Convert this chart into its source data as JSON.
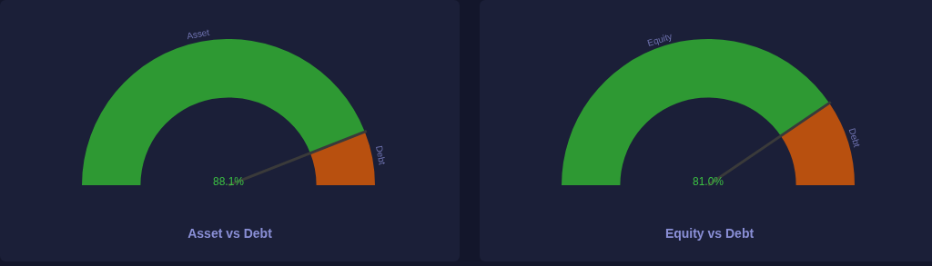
{
  "chart_data": [
    {
      "type": "donut",
      "title": "Asset vs Debt",
      "categories": [
        "Asset",
        "Debt"
      ],
      "values": [
        88.1,
        11.9
      ],
      "colors": [
        "#2e9933",
        "#b8500f"
      ],
      "needle": "Debt",
      "annotations": [
        "88.1%"
      ]
    },
    {
      "type": "donut",
      "title": "Equity vs Debt",
      "categories": [
        "Equity",
        "Debt"
      ],
      "values": [
        81.0,
        19.0
      ],
      "colors": [
        "#2e9933",
        "#b8500f"
      ],
      "needle": "Debt",
      "annotations": [
        "81.0%"
      ]
    }
  ]
}
